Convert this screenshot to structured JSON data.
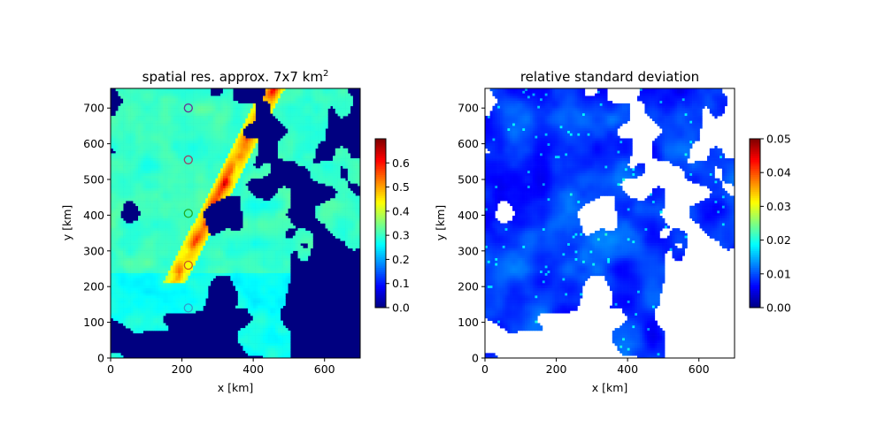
{
  "chart_data": [
    {
      "type": "heatmap",
      "title": "spatial res. approx. 7x7 km",
      "title_superscript": "2",
      "xlabel": "x [km]",
      "ylabel": "y [km]",
      "xlim": [
        0,
        700
      ],
      "ylim": [
        0,
        755
      ],
      "xticks": [
        "0",
        "200",
        "400",
        "600"
      ],
      "yticks": [
        "0",
        "100",
        "200",
        "300",
        "400",
        "500",
        "600",
        "700"
      ],
      "colormap": "jet",
      "colorbar": {
        "min": 0.0,
        "max": 0.7,
        "ticks": [
          "0.0",
          "0.1",
          "0.2",
          "0.3",
          "0.4",
          "0.5",
          "0.6"
        ]
      },
      "markers": [
        {
          "x": 218,
          "y": 700,
          "color": "#663399"
        },
        {
          "x": 218,
          "y": 555,
          "color": "#994466"
        },
        {
          "x": 218,
          "y": 405,
          "color": "#22aa22"
        },
        {
          "x": 218,
          "y": 260,
          "color": "#cc5522"
        },
        {
          "x": 218,
          "y": 140,
          "color": "#3399cc"
        }
      ]
    },
    {
      "type": "heatmap",
      "title": "relative standard deviation",
      "xlabel": "x [km]",
      "ylabel": "y [km]",
      "xlim": [
        0,
        700
      ],
      "ylim": [
        0,
        755
      ],
      "xticks": [
        "0",
        "200",
        "400",
        "600"
      ],
      "yticks": [
        "0",
        "100",
        "200",
        "300",
        "400",
        "500",
        "600",
        "700"
      ],
      "colormap": "jet",
      "missing_color": "#ffffff",
      "colorbar": {
        "min": 0.0,
        "max": 0.05,
        "ticks": [
          "0.00",
          "0.01",
          "0.02",
          "0.03",
          "0.04",
          "0.05"
        ]
      }
    }
  ]
}
